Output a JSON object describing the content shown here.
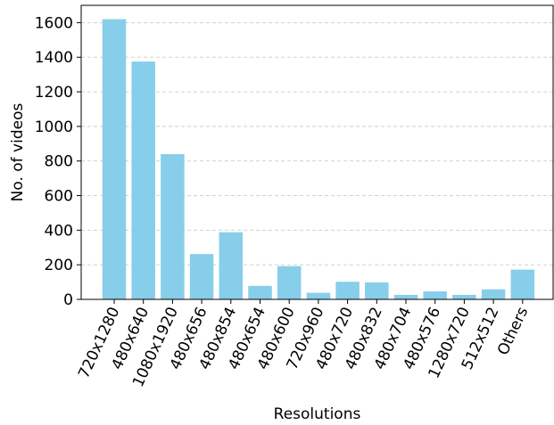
{
  "chart_data": {
    "type": "bar",
    "title": "",
    "xlabel": "Resolutions",
    "ylabel": "No. of videos",
    "categories": [
      "720x1280",
      "480x640",
      "1080x1920",
      "480x656",
      "480x854",
      "480x654",
      "480x600",
      "720x960",
      "480x720",
      "480x832",
      "480x704",
      "480x576",
      "1280x720",
      "512x512",
      "Others"
    ],
    "values": [
      1620,
      1375,
      840,
      262,
      388,
      78,
      192,
      38,
      102,
      98,
      26,
      46,
      26,
      58,
      172
    ],
    "yticks": [
      0,
      200,
      400,
      600,
      800,
      1000,
      1200,
      1400,
      1600
    ],
    "ylim": [
      0,
      1700
    ],
    "grid": "y-dashed",
    "bar_color": "#87CEEB"
  }
}
